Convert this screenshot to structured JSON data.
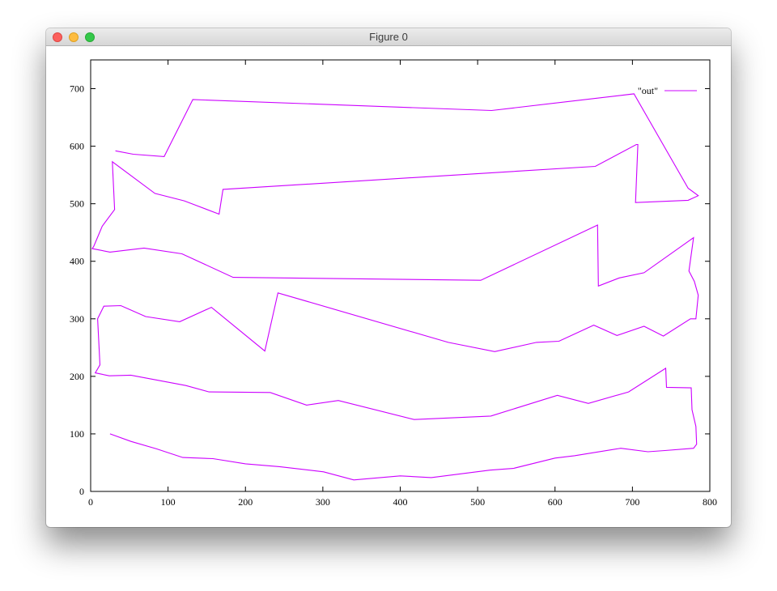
{
  "window": {
    "title": "Figure 0"
  },
  "chart_data": {
    "type": "line",
    "title": "",
    "xlabel": "",
    "ylabel": "",
    "xlim": [
      0,
      800
    ],
    "ylim": [
      0,
      750
    ],
    "xticks": [
      0,
      100,
      200,
      300,
      400,
      500,
      600,
      700,
      800
    ],
    "yticks": [
      0,
      100,
      200,
      300,
      400,
      500,
      600,
      700
    ],
    "grid": false,
    "legend": "top-right",
    "colors": {
      "series": "#cc00ff",
      "axis": "#000000"
    },
    "series": [
      {
        "name": "\"out\"",
        "x": [
          32,
          55,
          95,
          132,
          518,
          702,
          772,
          785,
          772,
          704,
          707,
          705,
          652,
          171,
          166,
          121,
          83,
          28,
          31,
          15,
          4,
          2,
          25,
          69,
          118,
          184,
          504,
          655,
          656,
          683,
          715,
          779,
          773,
          780,
          785,
          782,
          775,
          740,
          715,
          680,
          650,
          605,
          576,
          522,
          462,
          242,
          225,
          156,
          115,
          71,
          39,
          17,
          9,
          12,
          6,
          24,
          52,
          123,
          153,
          232,
          279,
          320,
          418,
          517,
          603,
          643,
          695,
          743,
          744,
          776,
          777,
          782,
          783,
          779,
          742,
          720,
          685,
          625,
          600,
          546,
          516,
          440,
          400,
          340,
          301,
          244,
          200,
          158,
          119,
          85,
          52,
          25
        ],
        "y": [
          592,
          586,
          582,
          681,
          662,
          691,
          527,
          514,
          506,
          502,
          603,
          603,
          565,
          525,
          482,
          505,
          518,
          573,
          490,
          461,
          426,
          422,
          416,
          423,
          413,
          372,
          367,
          463,
          357,
          371,
          380,
          441,
          383,
          365,
          341,
          300,
          300,
          270,
          287,
          271,
          289,
          261,
          259,
          243,
          259,
          345,
          244,
          320,
          295,
          304,
          323,
          322,
          300,
          220,
          206,
          201,
          202,
          184,
          173,
          172,
          150,
          158,
          125,
          131,
          167,
          153,
          173,
          214,
          181,
          180,
          142,
          113,
          82,
          75,
          71,
          69,
          75,
          62,
          58,
          40,
          37,
          24,
          27,
          20,
          34,
          43,
          48,
          57,
          59,
          74,
          87,
          100
        ]
      }
    ]
  }
}
